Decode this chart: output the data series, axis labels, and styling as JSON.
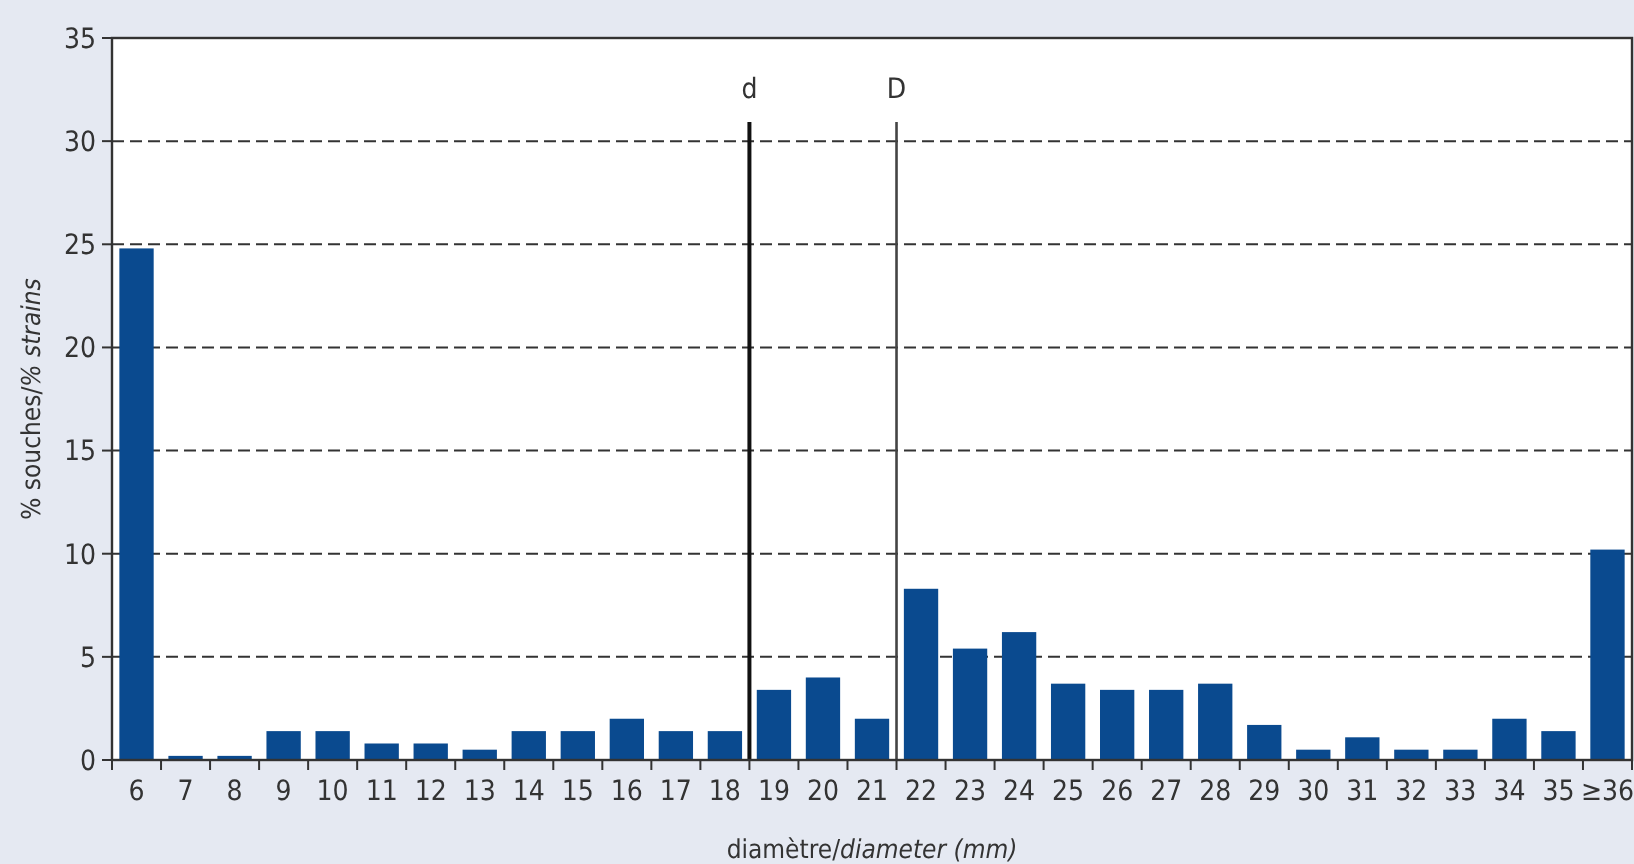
{
  "chart_data": {
    "type": "bar",
    "xlabel": "diamètre/diameter (mm)",
    "ylabel": "% souches/% strains",
    "x": [
      6,
      7,
      8,
      9,
      10,
      11,
      12,
      13,
      14,
      15,
      16,
      17,
      18,
      19,
      20,
      21,
      22,
      23,
      24,
      25,
      26,
      27,
      28,
      29,
      30,
      31,
      32,
      33,
      34,
      35,
      36
    ],
    "values": [
      24.8,
      0.2,
      0.2,
      1.4,
      1.4,
      0.8,
      0.8,
      0.5,
      1.4,
      1.4,
      2.0,
      1.4,
      1.4,
      3.4,
      4.0,
      2.0,
      8.3,
      5.4,
      6.2,
      3.7,
      3.4,
      3.4,
      3.7,
      1.7,
      0.5,
      1.1,
      0.5,
      0.5,
      2.0,
      1.4,
      10.2
    ],
    "color": "#0a4a8f",
    "xlim": [
      5.5,
      36.5
    ],
    "xticks": [
      6,
      7,
      8,
      9,
      10,
      11,
      12,
      13,
      14,
      15,
      16,
      17,
      18,
      19,
      20,
      21,
      22,
      23,
      24,
      25,
      26,
      27,
      28,
      29,
      30,
      31,
      32,
      33,
      34,
      35,
      {
        "value": 36,
        "label": "≥36"
      },
      {
        "value": 5.5,
        "label": null
      },
      {
        "value": 6.5,
        "label": null
      },
      {
        "value": 7.5,
        "label": null
      },
      {
        "value": 8.5,
        "label": null
      },
      {
        "value": 9.5,
        "label": null
      },
      {
        "value": 10.5,
        "label": null
      },
      {
        "value": 11.5,
        "label": null
      },
      {
        "value": 12.5,
        "label": null
      },
      {
        "value": 13.5,
        "label": null
      },
      {
        "value": 14.5,
        "label": null
      },
      {
        "value": 15.5,
        "label": null
      },
      {
        "value": 16.5,
        "label": null
      },
      {
        "value": 17.5,
        "label": null
      },
      {
        "value": 18.5,
        "label": null
      },
      {
        "value": 19.5,
        "label": null
      },
      {
        "value": 20.5,
        "label": null
      },
      {
        "value": 21.5,
        "label": null
      },
      {
        "value": 22.5,
        "label": null
      },
      {
        "value": 23.5,
        "label": null
      },
      {
        "value": 24.5,
        "label": null
      },
      {
        "value": 25.5,
        "label": null
      },
      {
        "value": 26.5,
        "label": null
      },
      {
        "value": 27.5,
        "label": null
      },
      {
        "value": 28.5,
        "label": null
      },
      {
        "value": 29.5,
        "label": null
      },
      {
        "value": 30.5,
        "label": null
      },
      {
        "value": 31.5,
        "label": null
      },
      {
        "value": 32.5,
        "label": null
      },
      {
        "value": 33.5,
        "label": null
      },
      {
        "value": 34.5,
        "label": null
      },
      {
        "value": 35.5,
        "label": null
      },
      {
        "value": 36.5,
        "label": null
      }
    ],
    "ylim": [
      0,
      35
    ],
    "yticks": [
      0,
      5,
      10,
      15,
      20,
      25,
      30,
      35
    ],
    "grid": "y",
    "ref_lines": [
      {
        "axis": "x",
        "value": 18.5,
        "label": "d",
        "color": "#111111"
      },
      {
        "axis": "x",
        "value": 21.5,
        "label": "D",
        "color": "#444444"
      }
    ]
  }
}
